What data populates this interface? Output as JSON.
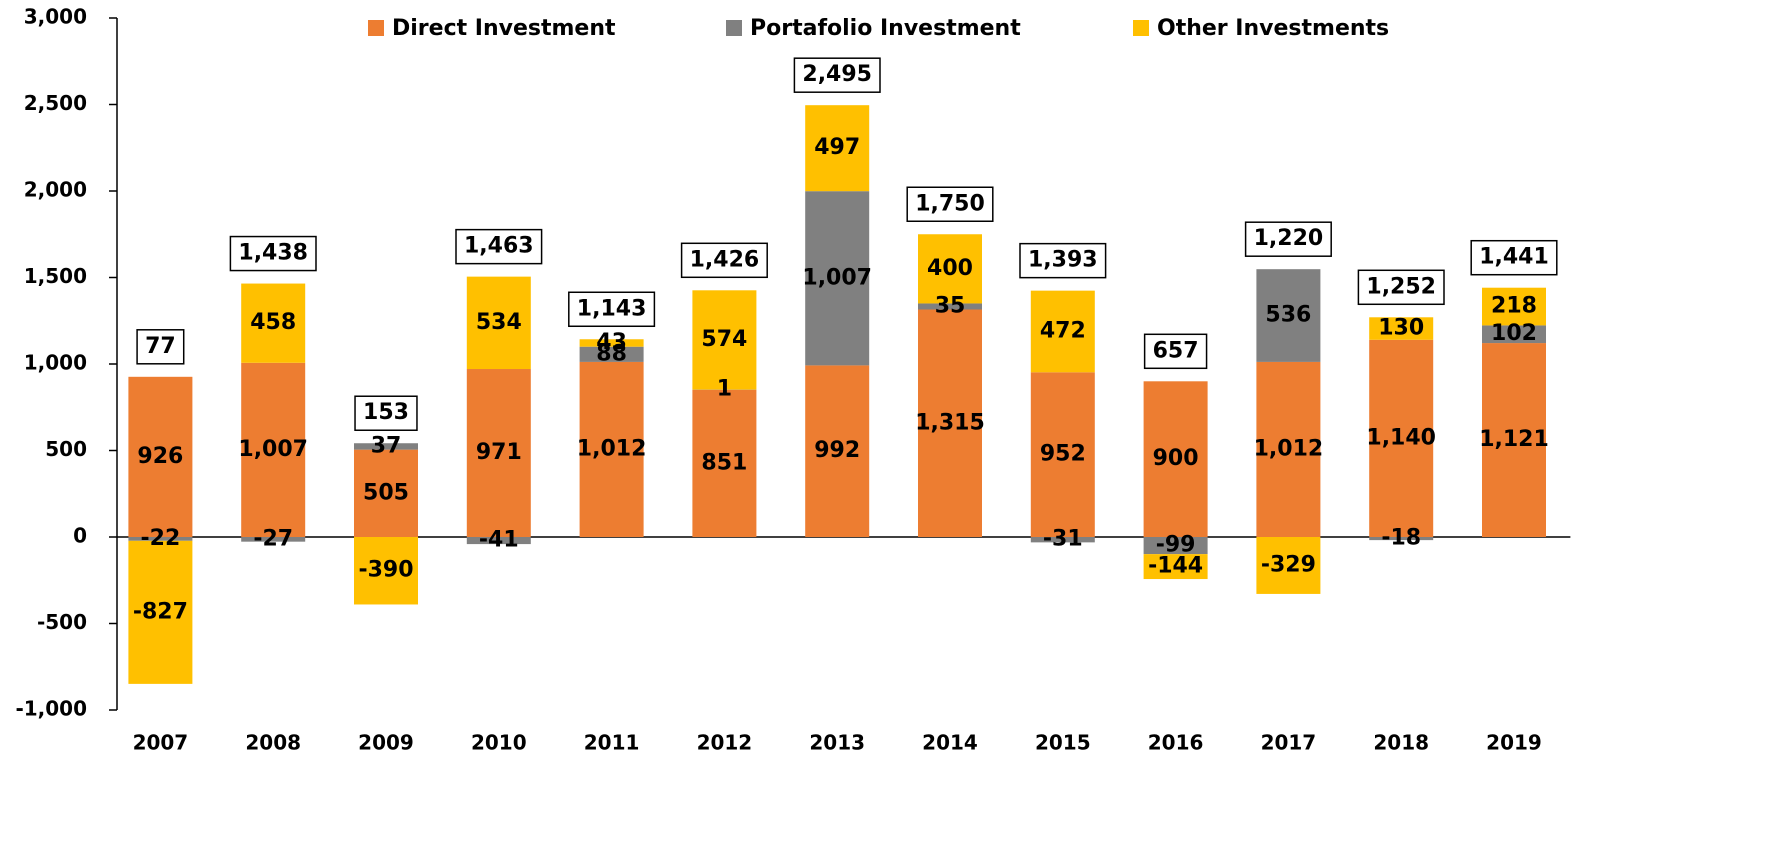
{
  "chart_data": {
    "type": "stacked_bar",
    "categories": [
      "2007",
      "2008",
      "2009",
      "2010",
      "2011",
      "2012",
      "2013",
      "2014",
      "2015",
      "2016",
      "2017",
      "2018",
      "2019"
    ],
    "series": [
      {
        "name": "Direct Investment",
        "color": "#ED7D31",
        "label_color": "#ffffff",
        "values": [
          926,
          1007,
          505,
          971,
          1012,
          851,
          992,
          1315,
          952,
          900,
          1012,
          1140,
          1121
        ],
        "value_labels": [
          "926",
          "1,007",
          "505",
          "971",
          "1,012",
          "851",
          "992",
          "1,315",
          "952",
          "900",
          "1,012",
          "1,140",
          "1,121"
        ]
      },
      {
        "name": "Portafolio Investment",
        "color": "#808080",
        "label_color": "#000000",
        "values": [
          -22,
          -27,
          37,
          -41,
          88,
          1,
          1007,
          35,
          -31,
          -99,
          536,
          -18,
          102
        ],
        "value_labels": [
          "-22",
          "-27",
          "37",
          "-41",
          "88",
          "1",
          "1,007",
          "35",
          "-31",
          "-99",
          "536",
          "-18",
          "102"
        ]
      },
      {
        "name": "Other Investments",
        "color": "#FFC000",
        "label_color": "#000000",
        "values": [
          -827,
          458,
          -390,
          534,
          43,
          574,
          497,
          400,
          472,
          -144,
          -329,
          130,
          218
        ],
        "value_labels": [
          "-827",
          "458",
          "-390",
          "534",
          "43",
          "574",
          "497",
          "400",
          "472",
          "-144",
          "-329",
          "130",
          "218"
        ]
      }
    ],
    "totals": {
      "values": [
        77,
        1438,
        153,
        1463,
        1143,
        1426,
        2495,
        1750,
        1393,
        657,
        1220,
        1252,
        1441
      ],
      "value_labels": [
        "77",
        "1,438",
        "153",
        "1,463",
        "1,143",
        "1,426",
        "2,495",
        "1,750",
        "1,393",
        "657",
        "1,220",
        "1,252",
        "1,441"
      ]
    },
    "ylim": [
      -1000,
      3000
    ],
    "yticks": [
      {
        "value": -1000,
        "label": "-1,000"
      },
      -500,
      0,
      500,
      {
        "value": 1000,
        "label": "1,000"
      },
      {
        "value": 1500,
        "label": "1,500"
      },
      {
        "value": 2000,
        "label": "2,000"
      },
      {
        "value": 2500,
        "label": "2,500"
      },
      {
        "value": 3000,
        "label": "3,000"
      }
    ],
    "legend": "top",
    "grid": false
  }
}
